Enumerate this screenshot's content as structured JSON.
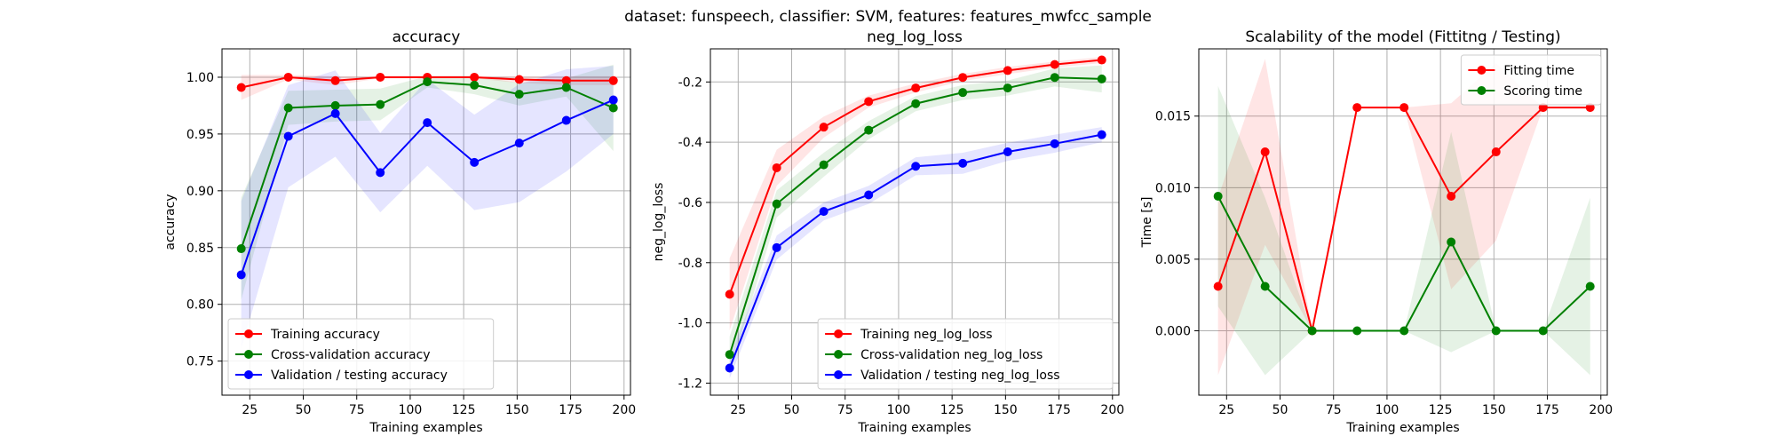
{
  "figure": {
    "suptitle": "dataset: funspeech, classifier: SVM, features: features_mwfcc_sample"
  },
  "chart_data": [
    {
      "type": "line",
      "title": "accuracy",
      "xlabel": "Training examples",
      "ylabel": "accuracy",
      "xlim": [
        12,
        203
      ],
      "ylim": [
        0.72,
        1.025
      ],
      "xticks": [
        25,
        50,
        75,
        100,
        125,
        150,
        175,
        200
      ],
      "yticks": [
        0.75,
        0.8,
        0.85,
        0.9,
        0.95,
        1.0
      ],
      "ytick_decimals": 2,
      "grid": true,
      "legend_position": "lower-left",
      "x": [
        21,
        43,
        65,
        86,
        108,
        130,
        151,
        173,
        195
      ],
      "series": [
        {
          "name": "Training accuracy",
          "color": "#ff0000",
          "values": [
            0.991,
            1.0,
            0.997,
            1.0,
            1.0,
            1.0,
            0.998,
            0.997,
            0.997
          ],
          "band": [
            0.011,
            0.002,
            0.004,
            0.001,
            0.001,
            0.001,
            0.003,
            0.004,
            0.004
          ]
        },
        {
          "name": "Cross-validation accuracy",
          "color": "#008000",
          "values": [
            0.849,
            0.973,
            0.975,
            0.976,
            0.996,
            0.993,
            0.985,
            0.991,
            0.973
          ],
          "band": [
            0.045,
            0.015,
            0.014,
            0.014,
            0.005,
            0.008,
            0.01,
            0.008,
            0.038
          ]
        },
        {
          "name": "Validation / testing accuracy",
          "color": "#0000ff",
          "values": [
            0.826,
            0.948,
            0.968,
            0.916,
            0.96,
            0.925,
            0.942,
            0.962,
            0.98
          ],
          "band": [
            0.065,
            0.045,
            0.038,
            0.035,
            0.038,
            0.042,
            0.052,
            0.045,
            0.03
          ]
        }
      ]
    },
    {
      "type": "line",
      "title": "neg_log_loss",
      "xlabel": "Training examples",
      "ylabel": "neg_log_loss",
      "xlim": [
        12,
        203
      ],
      "ylim": [
        -1.24,
        -0.09
      ],
      "xticks": [
        25,
        50,
        75,
        100,
        125,
        150,
        175,
        200
      ],
      "yticks": [
        -1.2,
        -1.0,
        -0.8,
        -0.6,
        -0.4,
        -0.2
      ],
      "ytick_decimals": 1,
      "grid": true,
      "legend_position": "lower-right",
      "x": [
        21,
        43,
        65,
        86,
        108,
        130,
        151,
        173,
        195
      ],
      "series": [
        {
          "name": "Training neg_log_loss",
          "color": "#ff0000",
          "values": [
            -0.905,
            -0.485,
            -0.35,
            -0.265,
            -0.22,
            -0.185,
            -0.162,
            -0.142,
            -0.127
          ],
          "band": [
            0.12,
            0.06,
            0.035,
            0.02,
            0.015,
            0.012,
            0.012,
            0.01,
            0.01
          ]
        },
        {
          "name": "Cross-validation neg_log_loss",
          "color": "#008000",
          "values": [
            -1.105,
            -0.605,
            -0.475,
            -0.36,
            -0.272,
            -0.235,
            -0.22,
            -0.185,
            -0.19
          ],
          "band": [
            0.06,
            0.045,
            0.04,
            0.03,
            0.025,
            0.025,
            0.025,
            0.03,
            0.045
          ]
        },
        {
          "name": "Validation / testing neg_log_loss",
          "color": "#0000ff",
          "values": [
            -1.15,
            -0.75,
            -0.63,
            -0.575,
            -0.48,
            -0.47,
            -0.432,
            -0.405,
            -0.375
          ],
          "band": [
            0.035,
            0.04,
            0.03,
            0.03,
            0.03,
            0.035,
            0.03,
            0.03,
            0.025
          ]
        }
      ]
    },
    {
      "type": "line",
      "title": "Scalability of the model (Fittitng / Testing)",
      "xlabel": "Training examples",
      "ylabel": "Time [s]",
      "xlim": [
        12,
        203
      ],
      "ylim": [
        -0.0045,
        0.0197
      ],
      "xticks": [
        25,
        50,
        75,
        100,
        125,
        150,
        175,
        200
      ],
      "yticks": [
        0.0,
        0.005,
        0.01,
        0.015
      ],
      "ytick_decimals": 3,
      "grid": true,
      "legend_position": "upper-right",
      "x": [
        21,
        43,
        65,
        86,
        108,
        130,
        151,
        173,
        195
      ],
      "series": [
        {
          "name": "Fitting time",
          "color": "#ff0000",
          "values": [
            0.0031,
            0.0125,
            0.0,
            0.0156,
            0.0156,
            0.0094,
            0.0125,
            0.0156,
            0.0156
          ],
          "band": [
            0.0062,
            0.0065,
            0.0,
            0.0,
            0.0,
            0.0065,
            0.0062,
            0.0,
            0.0
          ]
        },
        {
          "name": "Scoring time",
          "color": "#008000",
          "values": [
            0.0094,
            0.0031,
            0.0,
            0.0,
            0.0,
            0.0062,
            0.0,
            0.0,
            0.0031
          ],
          "band": [
            0.0077,
            0.0062,
            0.0,
            0.0,
            0.0,
            0.0077,
            0.0,
            0.0,
            0.0062
          ]
        }
      ]
    }
  ]
}
